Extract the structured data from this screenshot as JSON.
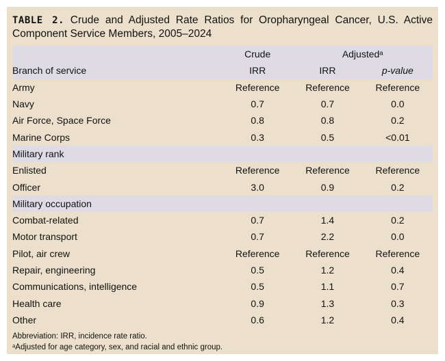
{
  "title": {
    "label": "TABLE 2.",
    "text": "Crude and Adjusted Rate Ratios for Oropharyngeal Cancer, U.S. Active Component Service Members, 2005–2024"
  },
  "header": {
    "crude": "Crude",
    "adjusted": "Adjustedᵃ"
  },
  "sections": [
    {
      "name": "Branch of service",
      "sub": [
        "IRR",
        "IRR",
        "p-value"
      ],
      "rows": [
        {
          "label": "Army",
          "crude": "Reference",
          "adj": "Reference",
          "p": "Reference"
        },
        {
          "label": "Navy",
          "crude": "0.7",
          "adj": "0.7",
          "p": "0.0"
        },
        {
          "label": "Air Force, Space Force",
          "crude": "0.8",
          "adj": "0.8",
          "p": "0.2"
        },
        {
          "label": "Marine Corps",
          "crude": "0.3",
          "adj": "0.5",
          "p": "<0.01"
        }
      ]
    },
    {
      "name": "Military rank",
      "rows": [
        {
          "label": "Enlisted",
          "crude": "Reference",
          "adj": "Reference",
          "p": "Reference"
        },
        {
          "label": "Officer",
          "crude": "3.0",
          "adj": "0.9",
          "p": "0.2"
        }
      ]
    },
    {
      "name": "Military occupation",
      "rows": [
        {
          "label": "Combat-related",
          "crude": "0.7",
          "adj": "1.4",
          "p": "0.2"
        },
        {
          "label": "Motor transport",
          "crude": "0.7",
          "adj": "2.2",
          "p": "0.0"
        },
        {
          "label": "Pilot, air crew",
          "crude": "Reference",
          "adj": "Reference",
          "p": "Reference"
        },
        {
          "label": "Repair, engineering",
          "crude": "0.5",
          "adj": "1.2",
          "p": "0.4"
        },
        {
          "label": "Communications, intelligence",
          "crude": "0.5",
          "adj": "1.1",
          "p": "0.7"
        },
        {
          "label": "Health care",
          "crude": "0.9",
          "adj": "1.3",
          "p": "0.3"
        },
        {
          "label": "Other",
          "crude": "0.6",
          "adj": "1.2",
          "p": "0.4"
        }
      ]
    }
  ],
  "notes": {
    "abbreviation": "Abbreviation: IRR, incidence rate ratio.",
    "footnote": "ᵃAdjusted for age category, sex, and racial and ethnic group."
  }
}
